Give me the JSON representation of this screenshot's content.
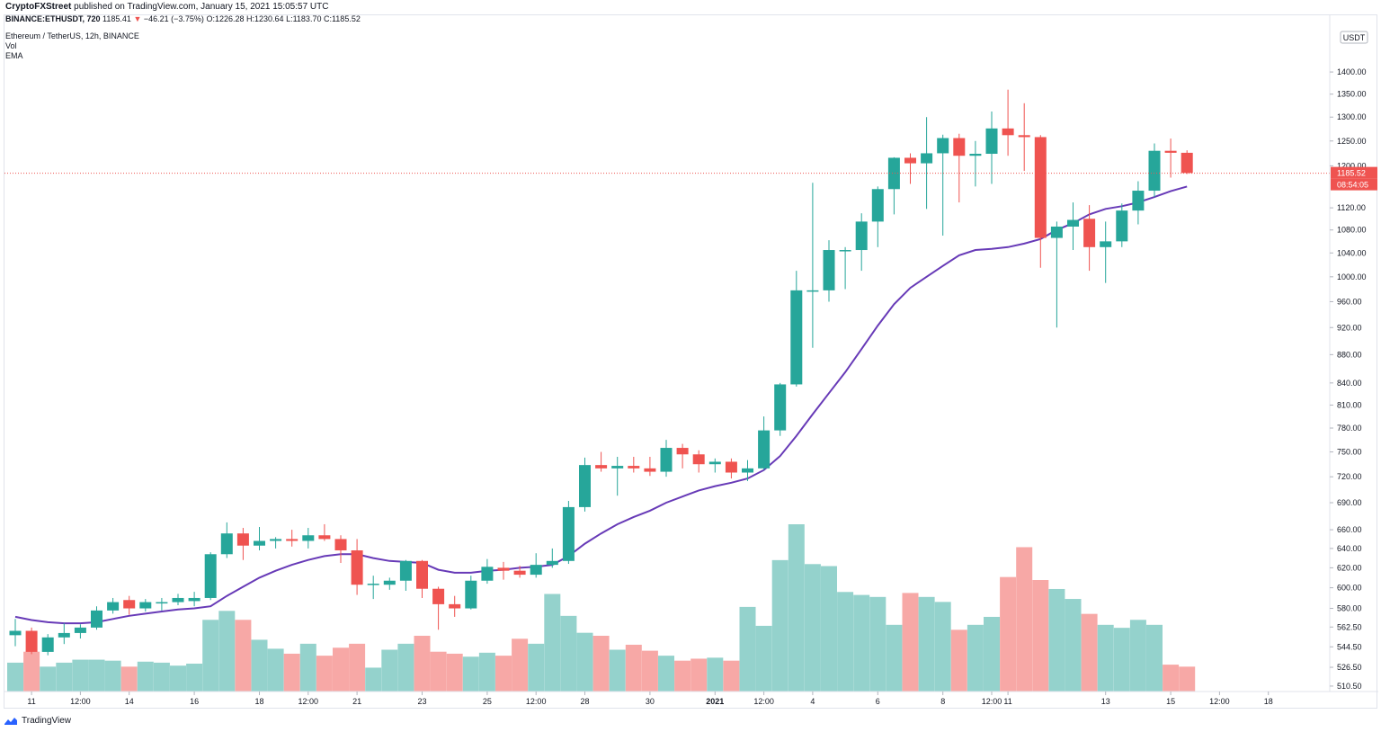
{
  "header": {
    "publisher": "CryptoFXStreet",
    "published_text": "published on TradingView.com, January 15, 2021 15:05:57 UTC",
    "symbol": "BINANCE:ETHUSDT, 720",
    "last": "1185.41",
    "change": "−46.21 (−3.75%)",
    "open": "O:1226.28",
    "high": "H:1230.64",
    "low": "L:1183.70",
    "close": "C:1185.52"
  },
  "legend": {
    "title": "Ethereum / TetherUS, 12h, BINANCE",
    "vol": "Vol",
    "ema": "EMA"
  },
  "footer": {
    "brand": "TradingView"
  },
  "chart_data": {
    "type": "candlestick",
    "price_scale": "log",
    "currency": "USDT",
    "ylim": [
      500,
      1440
    ],
    "last_price_label": "1185.52",
    "countdown_label": "08:54:05",
    "colors": {
      "up": "#26a69a",
      "down": "#ef5350",
      "vol_up": "#94d2cc",
      "vol_down": "#f7a8a6",
      "ema": "#673ab7",
      "last_line": "#ef5350"
    },
    "y_ticks": [
      "1400.00",
      "1350.00",
      "1300.00",
      "1250.00",
      "1200.00",
      "1120.00",
      "1080.00",
      "1040.00",
      "1000.00",
      "960.00",
      "920.00",
      "880.00",
      "840.00",
      "810.00",
      "780.00",
      "750.00",
      "720.00",
      "690.00",
      "660.00",
      "640.00",
      "620.00",
      "600.00",
      "580.00",
      "562.50",
      "544.50",
      "526.50",
      "510.50"
    ],
    "x_ticks": [
      {
        "i": 1,
        "label": "11",
        "bold": false
      },
      {
        "i": 4,
        "label": "12:00",
        "bold": false
      },
      {
        "i": 7,
        "label": "14",
        "bold": false
      },
      {
        "i": 11,
        "label": "16",
        "bold": false
      },
      {
        "i": 15,
        "label": "18",
        "bold": false
      },
      {
        "i": 18,
        "label": "12:00",
        "bold": false
      },
      {
        "i": 21,
        "label": "21",
        "bold": false
      },
      {
        "i": 25,
        "label": "23",
        "bold": false
      },
      {
        "i": 29,
        "label": "25",
        "bold": false
      },
      {
        "i": 32,
        "label": "12:00",
        "bold": false
      },
      {
        "i": 35,
        "label": "28",
        "bold": false
      },
      {
        "i": 39,
        "label": "30",
        "bold": false
      },
      {
        "i": 43,
        "label": "2021",
        "bold": true
      },
      {
        "i": 46,
        "label": "12:00",
        "bold": false
      },
      {
        "i": 49,
        "label": "4",
        "bold": false
      },
      {
        "i": 53,
        "label": "6",
        "bold": false
      },
      {
        "i": 57,
        "label": "8",
        "bold": false
      },
      {
        "i": 60,
        "label": "12:00",
        "bold": false
      },
      {
        "i": 61,
        "label": "11",
        "bold": false
      },
      {
        "i": 67,
        "label": "13",
        "bold": false
      },
      {
        "i": 71,
        "label": "15",
        "bold": false
      },
      {
        "i": 74,
        "label": "12:00",
        "bold": false
      },
      {
        "i": 77,
        "label": "18",
        "bold": false
      }
    ],
    "candles": [
      [
        555,
        570,
        545,
        559
      ],
      [
        559,
        562,
        538,
        540
      ],
      [
        540,
        556,
        537,
        553
      ],
      [
        553,
        566,
        547,
        557
      ],
      [
        557,
        565,
        552,
        562
      ],
      [
        562,
        582,
        560,
        578
      ],
      [
        578,
        590,
        575,
        586
      ],
      [
        588,
        592,
        574,
        580
      ],
      [
        580,
        589,
        577,
        586
      ],
      [
        585,
        590,
        578,
        586
      ],
      [
        586,
        594,
        583,
        590
      ],
      [
        587,
        596,
        582,
        590
      ],
      [
        590,
        636,
        588,
        634
      ],
      [
        634,
        668,
        630,
        656
      ],
      [
        656,
        662,
        628,
        643
      ],
      [
        643,
        663,
        638,
        648
      ],
      [
        648,
        652,
        640,
        650
      ],
      [
        650,
        660,
        642,
        648
      ],
      [
        648,
        662,
        640,
        654
      ],
      [
        654,
        666,
        648,
        650
      ],
      [
        650,
        654,
        625,
        638
      ],
      [
        638,
        650,
        593,
        603
      ],
      [
        603,
        612,
        589,
        604
      ],
      [
        603,
        610,
        598,
        607
      ],
      [
        607,
        628,
        597,
        627
      ],
      [
        627,
        628,
        590,
        599
      ],
      [
        599,
        601,
        560,
        584
      ],
      [
        584,
        592,
        572,
        580
      ],
      [
        580,
        612,
        579,
        607
      ],
      [
        607,
        629,
        604,
        621
      ],
      [
        620,
        626,
        608,
        617
      ],
      [
        617,
        622,
        610,
        613
      ],
      [
        613,
        635,
        610,
        623
      ],
      [
        623,
        640,
        620,
        627
      ],
      [
        627,
        692,
        624,
        685
      ],
      [
        685,
        743,
        680,
        734
      ],
      [
        734,
        750,
        726,
        730
      ],
      [
        730,
        744,
        698,
        733
      ],
      [
        733,
        744,
        725,
        730
      ],
      [
        730,
        744,
        721,
        726
      ],
      [
        726,
        765,
        720,
        755
      ],
      [
        755,
        760,
        730,
        747
      ],
      [
        747,
        752,
        725,
        735
      ],
      [
        735,
        742,
        725,
        738
      ],
      [
        738,
        742,
        718,
        725
      ],
      [
        725,
        740,
        715,
        730
      ],
      [
        730,
        795,
        728,
        777
      ],
      [
        777,
        840,
        770,
        838
      ],
      [
        838,
        1010,
        835,
        978
      ],
      [
        978,
        1167,
        890,
        978
      ],
      [
        978,
        1062,
        960,
        1045
      ],
      [
        1045,
        1050,
        980,
        1045
      ],
      [
        1045,
        1110,
        1010,
        1095
      ],
      [
        1095,
        1160,
        1050,
        1155
      ],
      [
        1155,
        1217,
        1108,
        1216
      ],
      [
        1216,
        1225,
        1165,
        1205
      ],
      [
        1205,
        1300,
        1118,
        1225
      ],
      [
        1225,
        1263,
        1070,
        1256
      ],
      [
        1256,
        1265,
        1130,
        1220
      ],
      [
        1220,
        1250,
        1160,
        1224
      ],
      [
        1224,
        1312,
        1165,
        1276
      ],
      [
        1276,
        1360,
        1220,
        1262
      ],
      [
        1262,
        1330,
        1190,
        1258
      ],
      [
        1258,
        1262,
        1015,
        1066
      ],
      [
        1066,
        1095,
        920,
        1086
      ],
      [
        1086,
        1130,
        1045,
        1098
      ],
      [
        1100,
        1125,
        1010,
        1050
      ],
      [
        1050,
        1095,
        990,
        1060
      ],
      [
        1060,
        1128,
        1050,
        1115
      ],
      [
        1115,
        1170,
        1090,
        1152
      ],
      [
        1152,
        1245,
        1140,
        1230
      ],
      [
        1230,
        1255,
        1177,
        1226
      ],
      [
        1226,
        1231,
        1184,
        1186
      ]
    ],
    "volume": [
      29,
      40,
      25,
      29,
      32,
      32,
      31,
      25,
      30,
      29,
      26,
      28,
      72,
      81,
      72,
      52,
      43,
      38,
      48,
      36,
      44,
      48,
      24,
      42,
      48,
      56,
      40,
      38,
      35,
      39,
      36,
      53,
      48,
      98,
      76,
      59,
      56,
      42,
      47,
      41,
      36,
      31,
      33,
      34,
      31,
      85,
      66,
      132,
      168,
      128,
      126,
      100,
      97,
      95,
      67,
      99,
      95,
      90,
      62,
      67,
      75,
      115,
      145,
      112,
      103,
      93,
      78,
      67,
      64,
      72,
      67,
      27,
      25
    ],
    "vol_max": 168,
    "ema": [
      572,
      569,
      567,
      566,
      566,
      567,
      570,
      573,
      575,
      577,
      579,
      580,
      582,
      592,
      601,
      610,
      617,
      623,
      628,
      632,
      634,
      634,
      630,
      627,
      626,
      625,
      618,
      615,
      615,
      617,
      618,
      620,
      621,
      623,
      632,
      645,
      656,
      666,
      674,
      681,
      690,
      697,
      704,
      709,
      713,
      718,
      728,
      745,
      770,
      798,
      826,
      855,
      888,
      923,
      956,
      982,
      1000,
      1018,
      1036,
      1045,
      1047,
      1050,
      1056,
      1064,
      1080,
      1092,
      1108,
      1118,
      1123,
      1130,
      1140,
      1151,
      1160
    ]
  }
}
